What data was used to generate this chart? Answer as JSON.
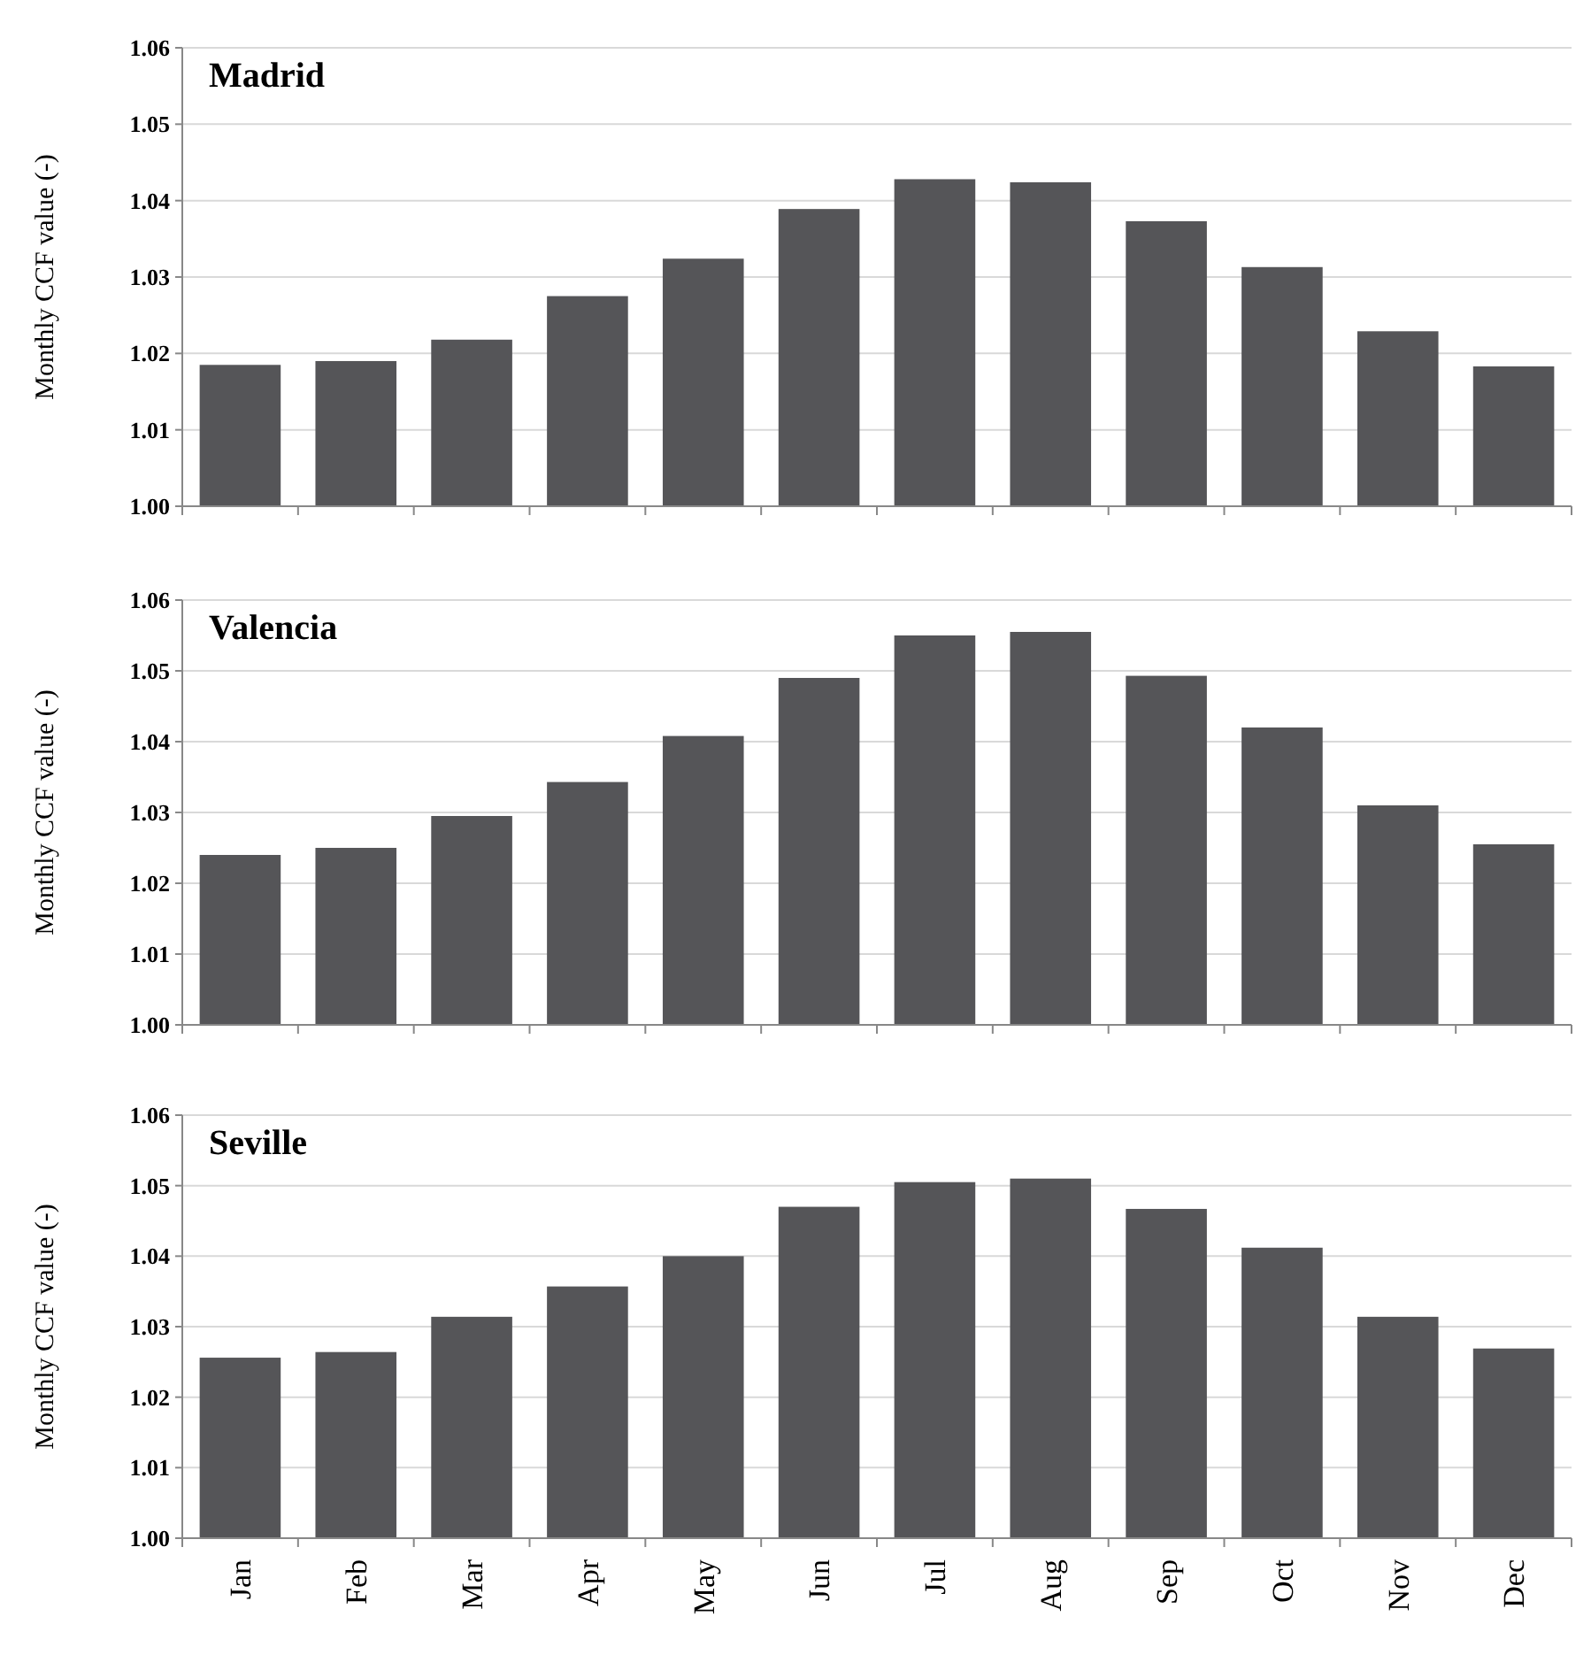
{
  "chart_data": [
    {
      "type": "bar",
      "title": "Madrid",
      "ylabel": "Monthly CCF value (-)",
      "categories": [
        null,
        null,
        null,
        null,
        null,
        null,
        null,
        null,
        null,
        null,
        null,
        null
      ],
      "color": "#555558",
      "values": [
        1.0185,
        1.019,
        1.0218,
        1.0275,
        1.0324,
        1.0389,
        1.0428,
        1.0424,
        1.0373,
        1.0313,
        1.0229,
        1.0183
      ],
      "ylim": [
        1.0,
        1.06
      ],
      "yticks": [
        {
          "value": 1.0,
          "label": "1.00"
        },
        {
          "value": 1.01,
          "label": "1.01"
        },
        {
          "value": 1.02,
          "label": "1.02"
        },
        {
          "value": 1.03,
          "label": "1.03"
        },
        {
          "value": 1.04,
          "label": "1.04"
        },
        {
          "value": 1.05,
          "label": "1.05"
        },
        {
          "value": 1.06,
          "label": "1.06"
        }
      ],
      "grid": "y",
      "tick_labels": "y"
    },
    {
      "type": "bar",
      "title": "Valencia",
      "ylabel": "Monthly CCF value (-)",
      "categories": [
        null,
        null,
        null,
        null,
        null,
        null,
        null,
        null,
        null,
        null,
        null,
        null
      ],
      "color": "#555558",
      "values": [
        1.024,
        1.025,
        1.0295,
        1.0343,
        1.0408,
        1.049,
        1.055,
        1.0555,
        1.0493,
        1.042,
        1.031,
        1.0255
      ],
      "ylim": [
        1.0,
        1.06
      ],
      "yticks": [
        {
          "value": 1.0,
          "label": "1.00"
        },
        {
          "value": 1.01,
          "label": "1.01"
        },
        {
          "value": 1.02,
          "label": "1.02"
        },
        {
          "value": 1.03,
          "label": "1.03"
        },
        {
          "value": 1.04,
          "label": "1.04"
        },
        {
          "value": 1.05,
          "label": "1.05"
        },
        {
          "value": 1.06,
          "label": "1.06"
        }
      ],
      "grid": "y",
      "tick_labels": "y"
    },
    {
      "type": "bar",
      "title": "Seville",
      "ylabel": "Monthly CCF value (-)",
      "categories": [
        "Jan",
        "Feb",
        "Mar",
        "Apr",
        "May",
        "Jun",
        "Jul",
        "Aug",
        "Sep",
        "Oct",
        "Nov",
        "Dec"
      ],
      "color": "#555558",
      "values": [
        1.0256,
        1.0264,
        1.0314,
        1.0357,
        1.04,
        1.047,
        1.0505,
        1.051,
        1.0467,
        1.0412,
        1.0314,
        1.0269
      ],
      "ylim": [
        1.0,
        1.06
      ],
      "yticks": [
        {
          "value": 1.0,
          "label": "1.00"
        },
        {
          "value": 1.01,
          "label": "1.01"
        },
        {
          "value": 1.02,
          "label": "1.02"
        },
        {
          "value": 1.03,
          "label": "1.03"
        },
        {
          "value": 1.04,
          "label": "1.04"
        },
        {
          "value": 1.05,
          "label": "1.05"
        },
        {
          "value": 1.06,
          "label": "1.06"
        }
      ],
      "grid": "y"
    }
  ]
}
